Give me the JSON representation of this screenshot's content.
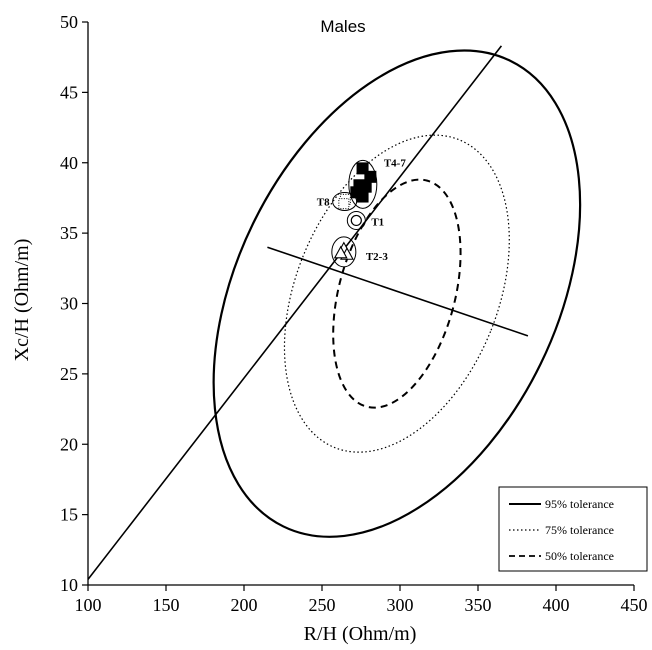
{
  "chart_data": {
    "type": "scatter",
    "title": "Males",
    "xlabel": "R/H (Ohm/m)",
    "ylabel": "Xc/H (Ohm/m)",
    "xlim": [
      100,
      450
    ],
    "ylim": [
      10,
      50
    ],
    "xticks": [
      "100",
      "150",
      "200",
      "250",
      "300",
      "350",
      "400",
      "450"
    ],
    "yticks": [
      "10",
      "15",
      "20",
      "25",
      "30",
      "35",
      "40",
      "45",
      "50"
    ],
    "grid": false,
    "legend_position": "bottom-right",
    "center": [
      298,
      30.7
    ],
    "major_axis": {
      "from": [
        100,
        10.4
      ],
      "to": [
        365,
        48.3
      ]
    },
    "minor_axis": {
      "from": [
        215,
        34.0
      ],
      "to": [
        382,
        27.7
      ]
    },
    "ellipses": [
      {
        "name": "95% tolerance",
        "style": "solid",
        "outline": [
          [
            298,
            48.5
          ],
          [
            382,
            27.7
          ],
          [
            298,
            12.9
          ],
          [
            215,
            34.0
          ]
        ]
      },
      {
        "name": "75% tolerance",
        "style": "dotted",
        "outline": [
          [
            298,
            42.8
          ],
          [
            353,
            30.0
          ],
          [
            298,
            18.7
          ],
          [
            243,
            31.6
          ]
        ]
      },
      {
        "name": "50% tolerance",
        "style": "dashed",
        "outline": [
          [
            298,
            39.3
          ],
          [
            327,
            30.2
          ],
          [
            298,
            22.3
          ],
          [
            269,
            30.9
          ]
        ]
      }
    ],
    "groups": [
      {
        "name": "T4-7",
        "marker": "filled-square",
        "points": [
          [
            276,
            39.6
          ],
          [
            281,
            39.0
          ],
          [
            274,
            38.4
          ],
          [
            276,
            37.6
          ],
          [
            272,
            37.9
          ],
          [
            278,
            38.3
          ]
        ]
      },
      {
        "name": "T8",
        "marker": "dotted-square",
        "points": [
          [
            265,
            37.4
          ],
          [
            264,
            37.1
          ]
        ]
      },
      {
        "name": "T1",
        "marker": "circle",
        "points": [
          [
            272,
            35.9
          ]
        ]
      },
      {
        "name": "T2-3",
        "marker": "triangle",
        "points": [
          [
            264,
            33.9
          ],
          [
            266,
            33.5
          ],
          [
            262,
            33.6
          ]
        ]
      }
    ]
  }
}
